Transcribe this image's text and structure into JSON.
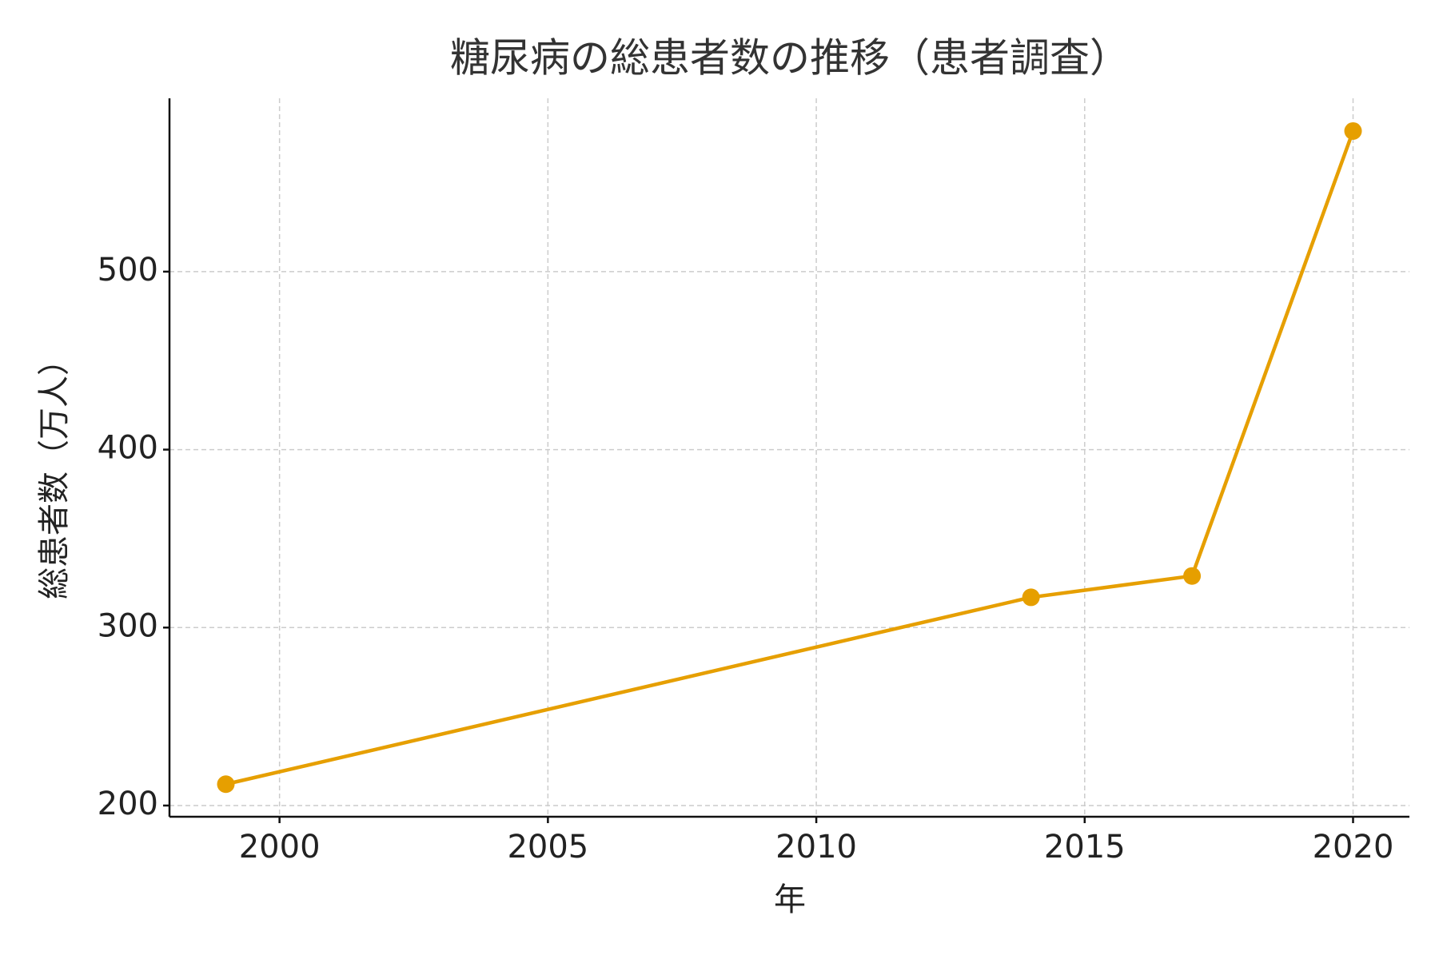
{
  "chart_data": {
    "type": "line",
    "title": "糖尿病の総患者数の推移（患者調査）",
    "x_label": "年",
    "y_label": "総患者数（万人）",
    "x": [
      1999,
      2014,
      2017,
      2020
    ],
    "series": [
      {
        "name": "総患者数",
        "color": "#e69f00",
        "values": [
          212,
          317,
          329,
          579
        ]
      }
    ],
    "xlim": [
      1997.95,
      2021.05
    ],
    "xticks": [
      2000,
      2005,
      2010,
      2015,
      2020
    ],
    "ylim": [
      193.7,
      597.4
    ],
    "yticks": [
      200,
      300,
      400,
      500
    ],
    "grid": true
  }
}
